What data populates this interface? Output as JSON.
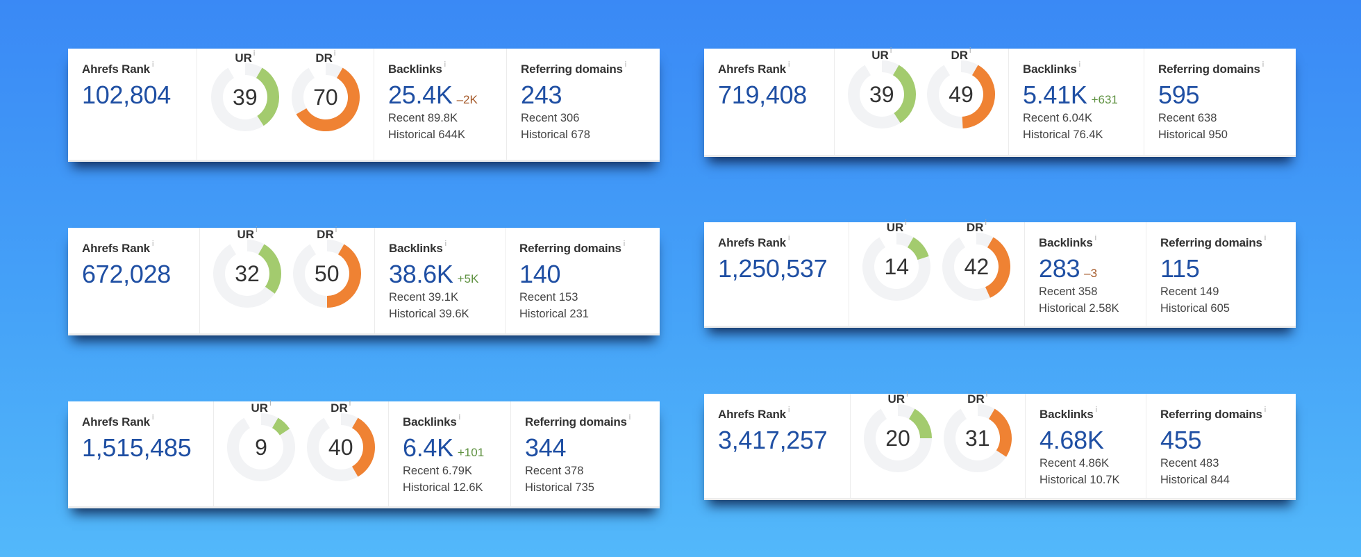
{
  "colors": {
    "ur_arc": "#a3cb6e",
    "dr_arc": "#ef8233",
    "track": "#f2f3f5",
    "value_blue": "#1f4fa3",
    "delta_negative": "#a55a2a",
    "delta_positive": "#5e9140"
  },
  "labels": {
    "ahrefs_rank": "Ahrefs Rank",
    "ur": "UR",
    "dr": "DR",
    "backlinks": "Backlinks",
    "referring_domains": "Referring domains",
    "info": "i"
  },
  "cards": [
    {
      "ahrefs_rank": "102,804",
      "ur": 39,
      "dr": 70,
      "backlinks": {
        "value": "25.4K",
        "delta": "–2K",
        "delta_sign": "neg",
        "recent": "Recent 89.8K",
        "historical": "Historical 644K"
      },
      "referring_domains": {
        "value": "243",
        "recent": "Recent 306",
        "historical": "Historical 678"
      }
    },
    {
      "ahrefs_rank": "719,408",
      "ur": 39,
      "dr": 49,
      "backlinks": {
        "value": "5.41K",
        "delta": "+631",
        "delta_sign": "pos",
        "recent": "Recent 6.04K",
        "historical": "Historical 76.4K"
      },
      "referring_domains": {
        "value": "595",
        "recent": "Recent 638",
        "historical": "Historical 950"
      }
    },
    {
      "ahrefs_rank": "672,028",
      "ur": 32,
      "dr": 50,
      "backlinks": {
        "value": "38.6K",
        "delta": "+5K",
        "delta_sign": "pos",
        "recent": "Recent 39.1K",
        "historical": "Historical 39.6K"
      },
      "referring_domains": {
        "value": "140",
        "recent": "Recent 153",
        "historical": "Historical 231"
      }
    },
    {
      "ahrefs_rank": "1,250,537",
      "ur": 14,
      "dr": 42,
      "backlinks": {
        "value": "283",
        "delta": "–3",
        "delta_sign": "neg",
        "recent": "Recent 358",
        "historical": "Historical 2.58K"
      },
      "referring_domains": {
        "value": "115",
        "recent": "Recent 149",
        "historical": "Historical 605"
      }
    },
    {
      "ahrefs_rank": "1,515,485",
      "ur": 9,
      "dr": 40,
      "backlinks": {
        "value": "6.4K",
        "delta": "+101",
        "delta_sign": "pos",
        "recent": "Recent 6.79K",
        "historical": "Historical 12.6K"
      },
      "referring_domains": {
        "value": "344",
        "recent": "Recent 378",
        "historical": "Historical 735"
      }
    },
    {
      "ahrefs_rank": "3,417,257",
      "ur": 20,
      "dr": 31,
      "backlinks": {
        "value": "4.68K",
        "delta": "",
        "delta_sign": "none",
        "recent": "Recent 4.86K",
        "historical": "Historical 10.7K"
      },
      "referring_domains": {
        "value": "455",
        "recent": "Recent 483",
        "historical": "Historical 844"
      }
    }
  ]
}
